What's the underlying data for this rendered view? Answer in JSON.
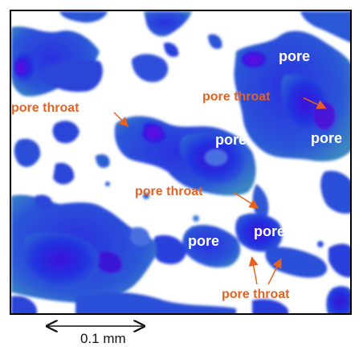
{
  "image": {
    "description_colors": {
      "background": "#ffffff",
      "pore_dark": "#1a18c8",
      "pore_mid": "#2c3ae0",
      "pore_light": "#3d7de0",
      "pore_teal": "#3a8fa8",
      "pore_core": "#5a10d8",
      "label_orange": "#e8611f",
      "label_white": "#ffffff",
      "frame": "#000000"
    }
  },
  "labels": {
    "pore_1": "pore",
    "pore_2": "pore",
    "pore_3": "pore",
    "pore_4": "pore",
    "pore_5": "pore",
    "throat_1": "pore throat",
    "throat_2": "pore throat",
    "throat_3": "pore throat",
    "throat_4": "pore throat"
  },
  "scale_bar": {
    "label": "0.1 mm"
  }
}
